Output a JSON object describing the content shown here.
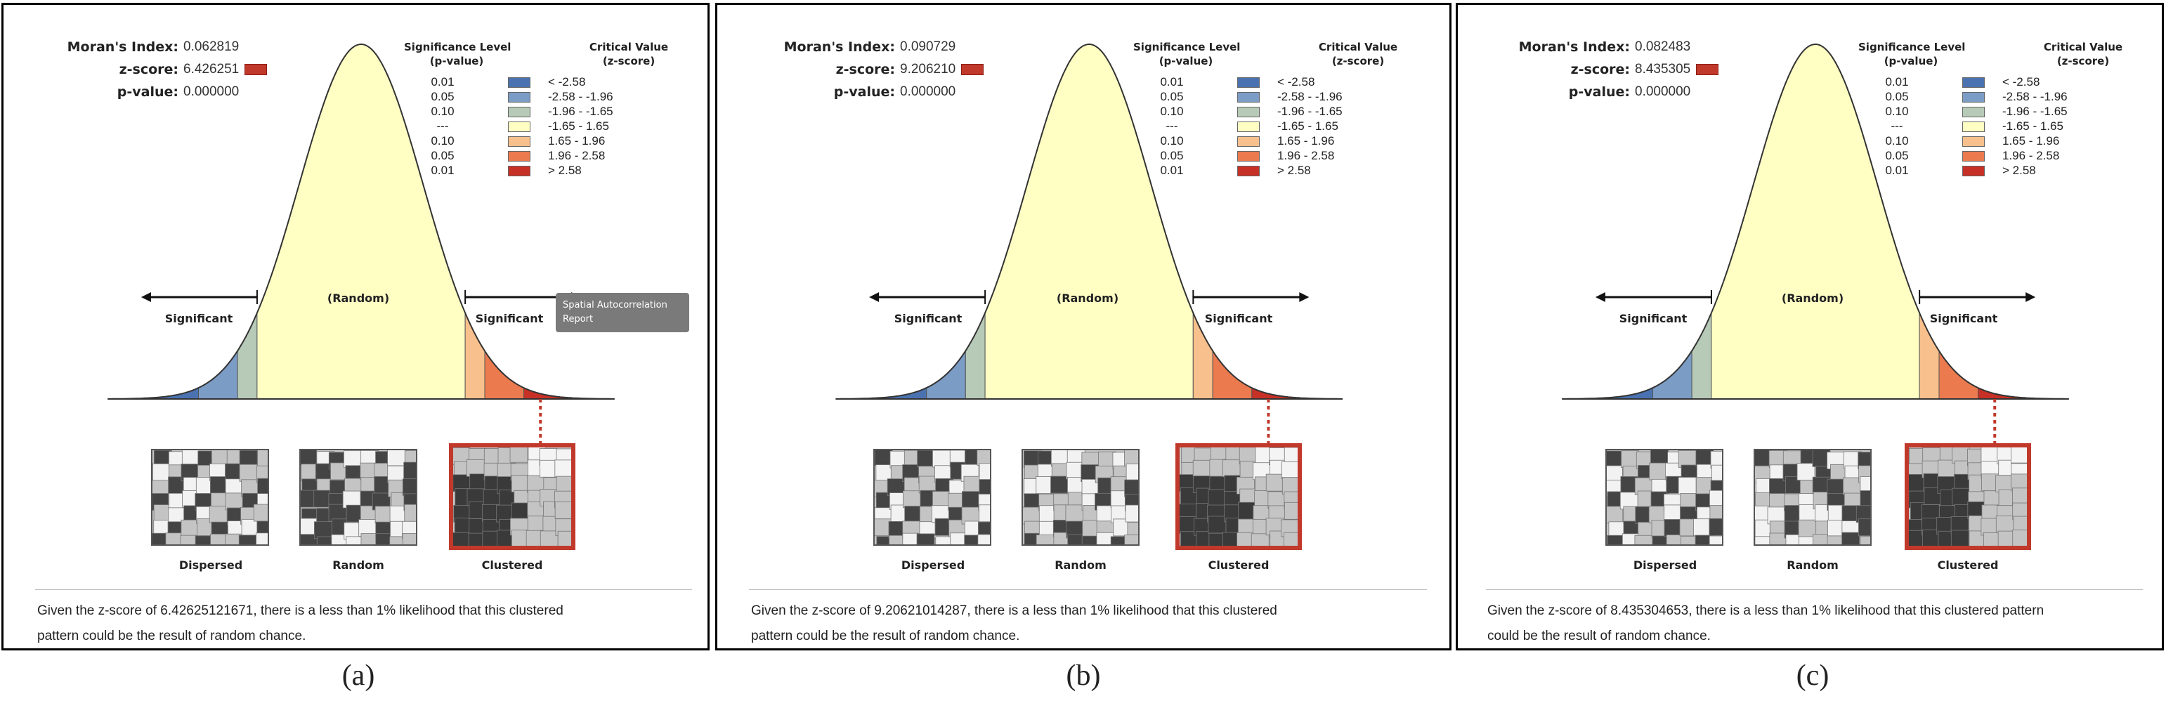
{
  "colors": {
    "curve_fill": "#ffffc4",
    "blue_dark": "#4a72b0",
    "blue_mid": "#7b9cc5",
    "blue_light": "#b7c9b7",
    "orange_light": "#f8c08c",
    "orange": "#eb7a4f",
    "red": "#c73026"
  },
  "chart_data": [
    {
      "type": "diagram",
      "panel_label": "(a)",
      "morans_index_label": "Moran's Index:",
      "morans_index": "0.062819",
      "z_score_label": "z-score:",
      "z_score": "6.426251",
      "p_value_label": "p-value:",
      "p_value": "0.000000",
      "legend_header_significance": "Significance Level",
      "legend_header_significance_sub": "(p-value)",
      "legend_header_critical": "Critical Value",
      "legend_header_critical_sub": "(z-score)",
      "legend_rows": [
        {
          "p": "0.01",
          "z": "< -2.58"
        },
        {
          "p": "0.05",
          "z": "-2.58 - -1.96"
        },
        {
          "p": "0.10",
          "z": "-1.96 - -1.65"
        },
        {
          "p": "---",
          "z": "-1.65 - 1.65"
        },
        {
          "p": "0.10",
          "z": "1.65 - 1.96"
        },
        {
          "p": "0.05",
          "z": "1.96 - 2.58"
        },
        {
          "p": "0.01",
          "z": "> 2.58"
        }
      ],
      "significant_left": "Significant",
      "random_label": "(Random)",
      "significant_right": "Significant",
      "tooltip": "Spatial Autocorrelation Report",
      "patterns": [
        "Dispersed",
        "Random",
        "Clustered"
      ],
      "selected_pattern": "Clustered",
      "caption": "Given the z-score of 6.42625121671, there is a less than 1% likelihood that this clustered pattern could be the result of random chance.",
      "caption_line1": "Given the z-score of 6.42625121671, there is a less than 1% likelihood that this clustered",
      "caption_line2": "pattern could be the result of random chance."
    },
    {
      "type": "diagram",
      "panel_label": "(b)",
      "morans_index_label": "Moran's Index:",
      "morans_index": "0.090729",
      "z_score_label": "z-score:",
      "z_score": "9.206210",
      "p_value_label": "p-value:",
      "p_value": "0.000000",
      "legend_header_significance": "Significance Level",
      "legend_header_significance_sub": "(p-value)",
      "legend_header_critical": "Critical Value",
      "legend_header_critical_sub": "(z-score)",
      "legend_rows": [
        {
          "p": "0.01",
          "z": "< -2.58"
        },
        {
          "p": "0.05",
          "z": "-2.58 - -1.96"
        },
        {
          "p": "0.10",
          "z": "-1.96 - -1.65"
        },
        {
          "p": "---",
          "z": "-1.65 - 1.65"
        },
        {
          "p": "0.10",
          "z": "1.65 - 1.96"
        },
        {
          "p": "0.05",
          "z": "1.96 - 2.58"
        },
        {
          "p": "0.01",
          "z": "> 2.58"
        }
      ],
      "significant_left": "Significant",
      "random_label": "(Random)",
      "significant_right": "Significant",
      "patterns": [
        "Dispersed",
        "Random",
        "Clustered"
      ],
      "selected_pattern": "Clustered",
      "caption": "Given the z-score of 9.20621014287, there is a less than 1% likelihood that this clustered pattern could be the result of random chance.",
      "caption_line1": "Given the z-score of 9.20621014287, there is a less than 1% likelihood that this clustered",
      "caption_line2": "pattern could be the result of random chance."
    },
    {
      "type": "diagram",
      "panel_label": "(c)",
      "morans_index_label": "Moran's Index:",
      "morans_index": "0.082483",
      "z_score_label": "z-score:",
      "z_score": "8.435305",
      "p_value_label": "p-value:",
      "p_value": "0.000000",
      "legend_header_significance": "Significance Level",
      "legend_header_significance_sub": "(p-value)",
      "legend_header_critical": "Critical Value",
      "legend_header_critical_sub": "(z-score)",
      "legend_rows": [
        {
          "p": "0.01",
          "z": "< -2.58"
        },
        {
          "p": "0.05",
          "z": "-2.58 - -1.96"
        },
        {
          "p": "0.10",
          "z": "-1.96 - -1.65"
        },
        {
          "p": "---",
          "z": "-1.65 - 1.65"
        },
        {
          "p": "0.10",
          "z": "1.65 - 1.96"
        },
        {
          "p": "0.05",
          "z": "1.96 - 2.58"
        },
        {
          "p": "0.01",
          "z": "> 2.58"
        }
      ],
      "significant_left": "Significant",
      "random_label": "(Random)",
      "significant_right": "Significant",
      "patterns": [
        "Dispersed",
        "Random",
        "Clustered"
      ],
      "selected_pattern": "Clustered",
      "caption": "Given the z-score of 8.435304653, there is a less than 1% likelihood that this clustered pattern could be the result of random chance.",
      "caption_line1": "Given the z-score of 8.435304653, there is a less than 1% likelihood that this clustered pattern",
      "caption_line2": "could be the result of random chance."
    }
  ]
}
